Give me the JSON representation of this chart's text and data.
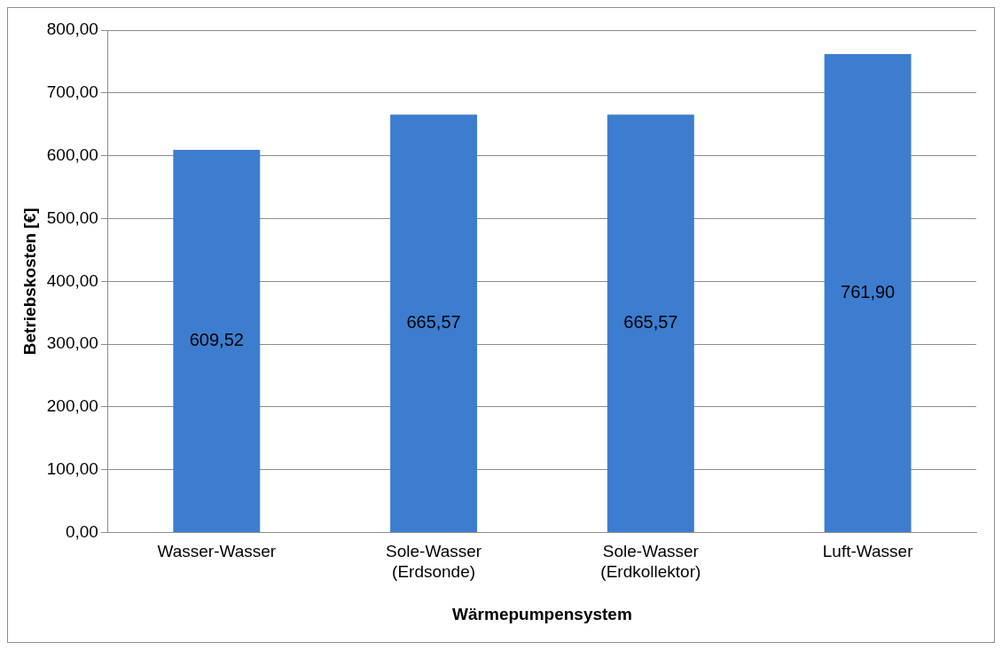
{
  "chart_data": {
    "type": "bar",
    "xlabel": "Wärmepumpensystem",
    "ylabel": "Betriebskosten [€]",
    "categories": [
      "Wasser-Wasser",
      "Sole-Wasser (Erdsonde)",
      "Sole-Wasser (Erdkollektor)",
      "Luft-Wasser"
    ],
    "values": [
      609.52,
      665.57,
      665.57,
      761.9
    ],
    "value_labels": [
      "609,52",
      "665,57",
      "665,57",
      "761,90"
    ],
    "color": "#3c7dd0",
    "ylim": [
      0,
      800
    ],
    "yticks": [
      {
        "value": 0,
        "label": "0,00"
      },
      {
        "value": 100,
        "label": "100,00"
      },
      {
        "value": 200,
        "label": "200,00"
      },
      {
        "value": 300,
        "label": "300,00"
      },
      {
        "value": 400,
        "label": "400,00"
      },
      {
        "value": 500,
        "label": "500,00"
      },
      {
        "value": 600,
        "label": "600,00"
      },
      {
        "value": 700,
        "label": "700,00"
      },
      {
        "value": 800,
        "label": "800,00"
      }
    ],
    "grid": "y",
    "legend": false
  }
}
